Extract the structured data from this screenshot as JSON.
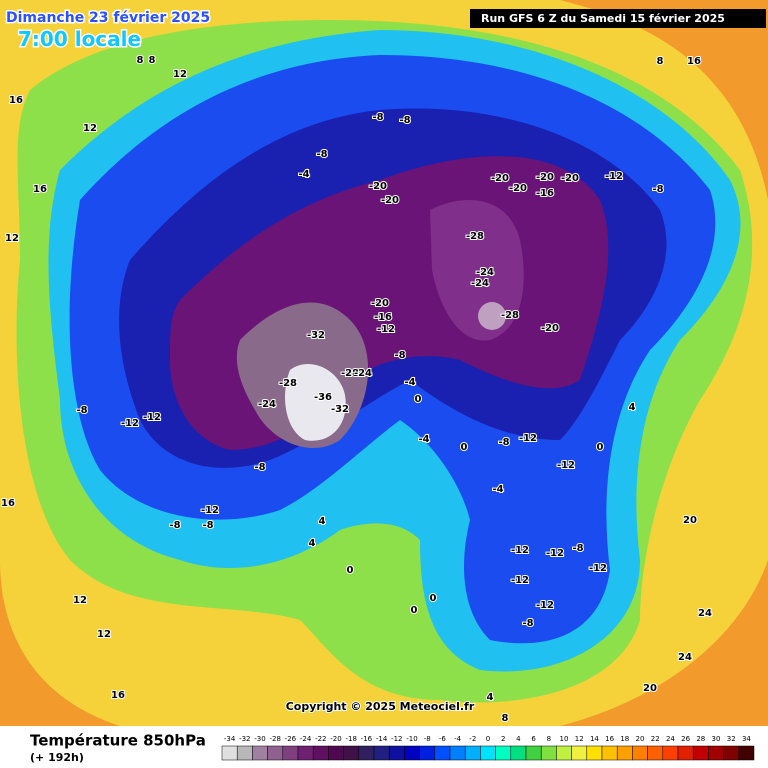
{
  "header": {
    "date": "Dimanche 23 février 2025",
    "time": "7:00 locale",
    "run": "Run GFS 6 Z du Samedi 15 février 2025"
  },
  "copyright": "Copyright © 2025 Meteociel.fr",
  "footer": {
    "title": "Température 850hPa",
    "subtitle": "(+ 192h)"
  },
  "colorbar": {
    "ticks": [
      -34,
      -32,
      -30,
      -28,
      -26,
      -24,
      -22,
      -20,
      -18,
      -16,
      -14,
      -12,
      -10,
      -8,
      -6,
      -4,
      -2,
      0,
      2,
      4,
      6,
      8,
      10,
      12,
      14,
      16,
      18,
      20,
      22,
      24,
      26,
      28,
      30,
      32,
      34
    ],
    "colors": [
      "#e0e0e0",
      "#b8b8b8",
      "#a080a0",
      "#906090",
      "#804080",
      "#702070",
      "#601060",
      "#500850",
      "#401048",
      "#302060",
      "#202080",
      "#1010a0",
      "#0000c0",
      "#0020e0",
      "#0050ff",
      "#0080ff",
      "#00b0ff",
      "#00e0ff",
      "#00ffc0",
      "#00e080",
      "#40d040",
      "#80e040",
      "#c0f040",
      "#f0f040",
      "#ffe000",
      "#ffc000",
      "#ffa000",
      "#ff8000",
      "#ff6000",
      "#ff4000",
      "#e02000",
      "#c00000",
      "#a00000",
      "#800000",
      "#400000"
    ]
  },
  "map_labels": {
    "values": [
      -20,
      -20,
      -20,
      -20,
      -20,
      -20,
      -16,
      -12,
      -8,
      -8,
      -8,
      -8,
      -4,
      -28,
      -24,
      -28,
      -24,
      -20,
      -20,
      -16,
      -12,
      -32,
      -28,
      -24,
      -36,
      -32,
      -28,
      -24,
      -8,
      -4,
      0,
      -4,
      0,
      -8,
      -12,
      -12,
      -4,
      -8,
      -12,
      -8,
      -8,
      -12,
      -12,
      -8,
      4,
      4,
      0,
      0,
      0,
      -12,
      -12,
      -8,
      -12,
      -12,
      -12,
      -8,
      0,
      4,
      20,
      24,
      24,
      20,
      16,
      16,
      12,
      12,
      16,
      12,
      12,
      16,
      4,
      8,
      8,
      16,
      8,
      12,
      8
    ]
  }
}
